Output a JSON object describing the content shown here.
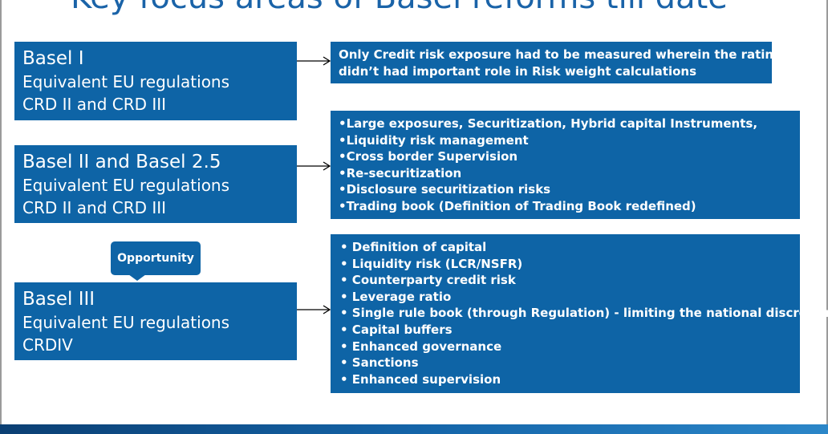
{
  "title": "Key focus areas of Basel reforms till date",
  "left_boxes": [
    {
      "name": "Basel I",
      "line2": "Equivalent EU regulations",
      "line3": "CRD II and CRD III"
    },
    {
      "name": "Basel II and Basel 2.5",
      "line2": "Equivalent EU regulations",
      "line3": "CRD II and CRD III"
    },
    {
      "name": "Basel III",
      "line2": "Equivalent EU regulations",
      "line3": "CRDIV"
    }
  ],
  "callout": {
    "label": "Opportunity"
  },
  "right_boxes": [
    {
      "lines": [
        "Only Credit risk exposure had to be measured wherein the ratings",
        "didn’t had important role in Risk weight calculations"
      ]
    },
    {
      "lines": [
        "•Large exposures, Securitization, Hybrid capital Instruments,",
        "•Liquidity risk management",
        "•Cross border Supervision",
        "•Re-securitization",
        "•Disclosure securitization risks",
        "•Trading book (Definition of Trading Book redefined)"
      ]
    },
    {
      "lines": [
        "• Definition of capital",
        "• Liquidity risk (LCR/NSFR)",
        "• Counterparty credit risk",
        "• Leverage ratio",
        "• Single rule book (through Regulation) - limiting the national discretions",
        "• Capital buffers",
        "• Enhanced governance",
        "• Sanctions",
        "• Enhanced supervision"
      ]
    }
  ],
  "colors": {
    "box": "#0e64a6",
    "title": "#1a63a8"
  }
}
